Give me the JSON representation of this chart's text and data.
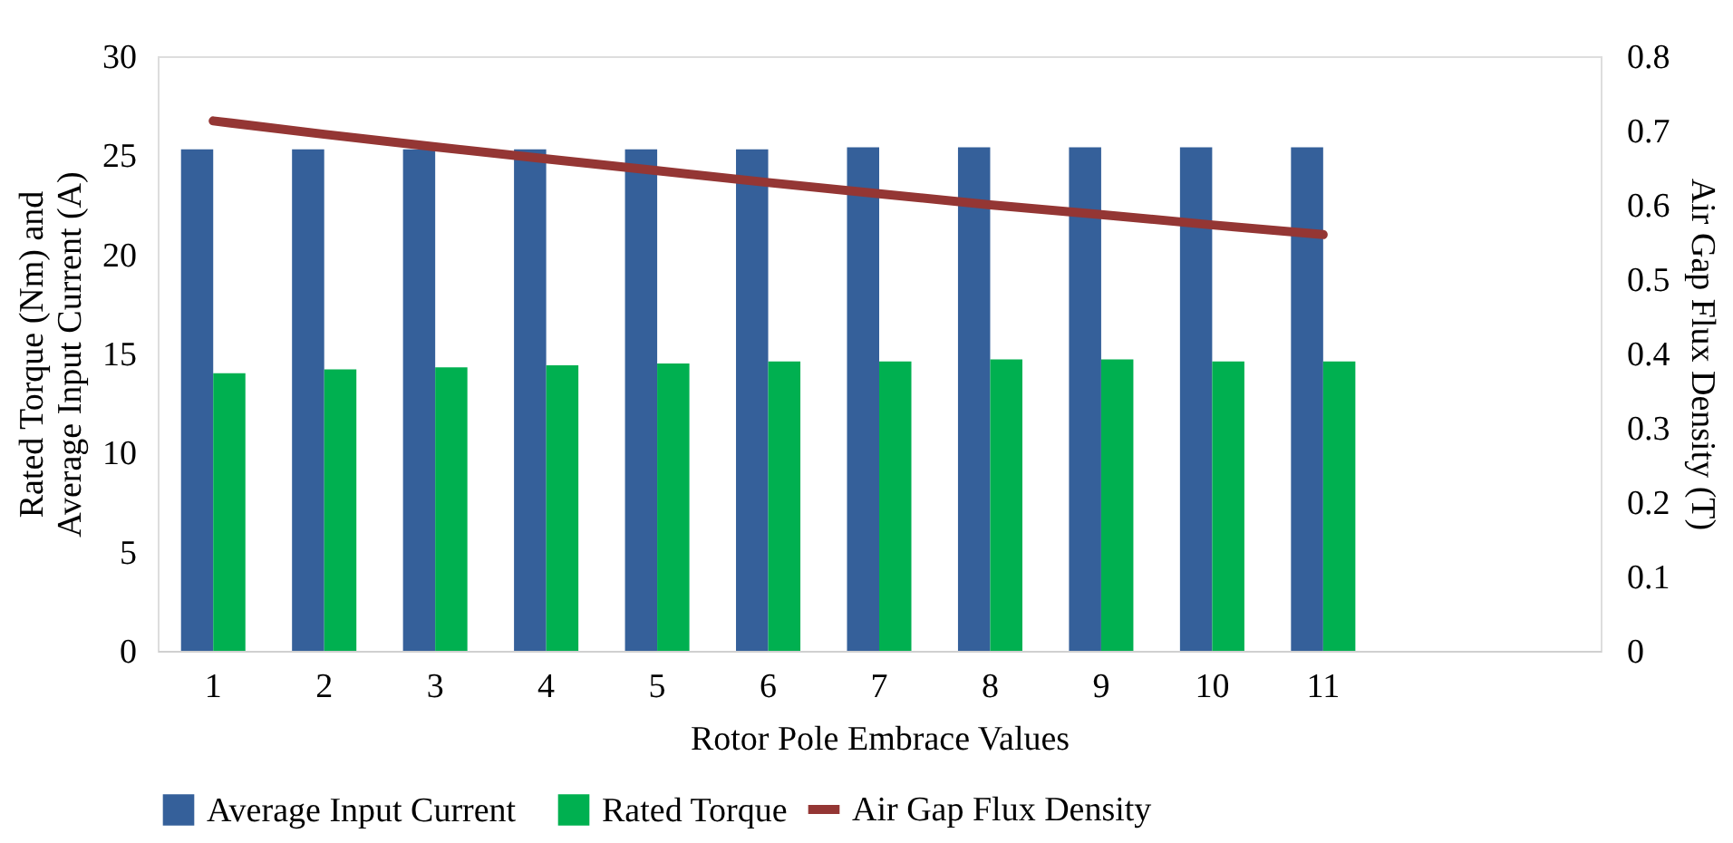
{
  "chart_data": {
    "type": "bar",
    "xlabel": "Rotor Pole Embrace Values",
    "ylabel": "Rated Torque (Nm) and Average Input Current (A)",
    "y2label": "Air Gap Flux Density (T)",
    "categories": [
      "1",
      "2",
      "3",
      "4",
      "5",
      "6",
      "7",
      "8",
      "9",
      "10",
      "11",
      null,
      null
    ],
    "ylim": [
      0,
      30
    ],
    "yticks": [
      0,
      5,
      10,
      15,
      20,
      25,
      30
    ],
    "y2lim": [
      0,
      0.8
    ],
    "y2ticks": [
      0,
      0.1,
      0.2,
      0.3,
      0.4,
      0.5,
      0.6,
      0.7,
      0.8
    ],
    "grid": false,
    "legend": "bottom",
    "series": [
      {
        "name": "Average Input Current",
        "color": "#35609a",
        "values": [
          25.3,
          25.3,
          25.3,
          25.3,
          25.3,
          25.3,
          25.4,
          25.4,
          25.4,
          25.4,
          25.4,
          null,
          null
        ]
      },
      {
        "name": "Rated Torque",
        "color": "#00b050",
        "values": [
          14.0,
          14.2,
          14.3,
          14.4,
          14.5,
          14.6,
          14.6,
          14.7,
          14.7,
          14.6,
          14.6,
          null,
          null
        ]
      },
      {
        "name": "Air Gap Flux Density",
        "color": "#943634",
        "type": "line",
        "axis": "y2",
        "values": [
          0.713,
          0.695,
          0.678,
          0.662,
          0.646,
          0.63,
          0.615,
          0.6,
          0.587,
          0.573,
          0.56,
          null,
          null
        ]
      }
    ]
  }
}
